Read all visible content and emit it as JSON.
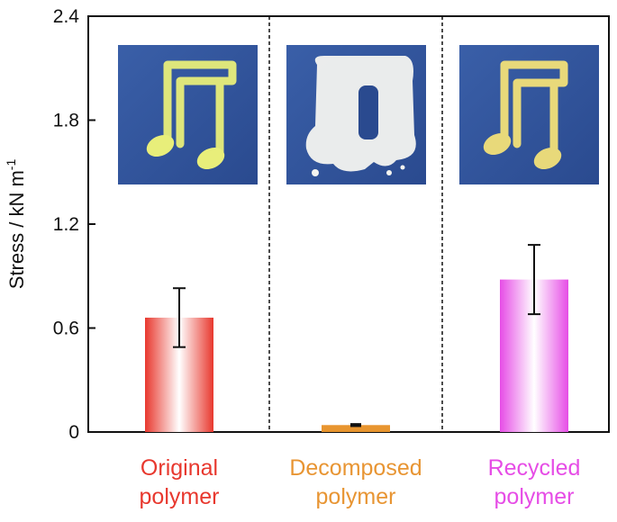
{
  "chart_data": {
    "type": "bar",
    "categories": [
      "Original polymer",
      "Decomposed polymer",
      "Recycled polymer"
    ],
    "category_lines": [
      [
        "Original",
        "polymer"
      ],
      [
        "Decomposed",
        "polymer"
      ],
      [
        "Recycled",
        "polymer"
      ]
    ],
    "values": [
      0.66,
      0.04,
      0.88
    ],
    "errors": [
      0.17,
      0.006,
      0.2
    ],
    "colors": [
      "#e8382e",
      "#e89533",
      "#e64de6"
    ],
    "ylabel": "Stress / kN m",
    "ylabel_sup": "-1",
    "ylim": [
      0,
      2.4
    ],
    "yticks": [
      "0",
      "0.6",
      "1.2",
      "1.8",
      "2.4"
    ],
    "ytick_values": [
      0,
      0.6,
      1.2,
      1.8,
      2.4
    ],
    "grid": false,
    "separators": "dashed vertical lines between categories"
  },
  "photos": [
    {
      "icon": "music-note-photo-yellow"
    },
    {
      "icon": "music-note-photo-decomposed"
    },
    {
      "icon": "music-note-photo-recycled"
    }
  ]
}
